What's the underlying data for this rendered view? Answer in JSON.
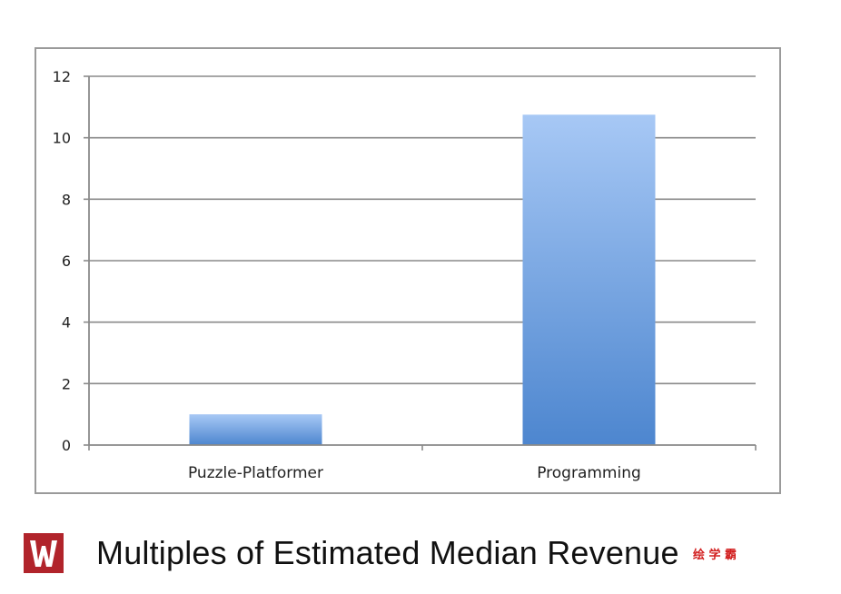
{
  "chart_data": {
    "type": "bar",
    "categories": [
      "Puzzle-Platformer",
      "Programming"
    ],
    "values": [
      1.0,
      10.75
    ],
    "ylim": [
      0,
      12
    ],
    "yticks": [
      0,
      2,
      4,
      6,
      8,
      10,
      12
    ],
    "grid": true,
    "bar_color_top": "#a7c8f5",
    "bar_color_bottom": "#4d86cf"
  },
  "caption": {
    "title": "Multiples of Estimated Median Revenue",
    "logo_color": "#b1242b"
  },
  "watermark": {
    "text": "绘 学 霸",
    "color": "#d21f1f"
  }
}
